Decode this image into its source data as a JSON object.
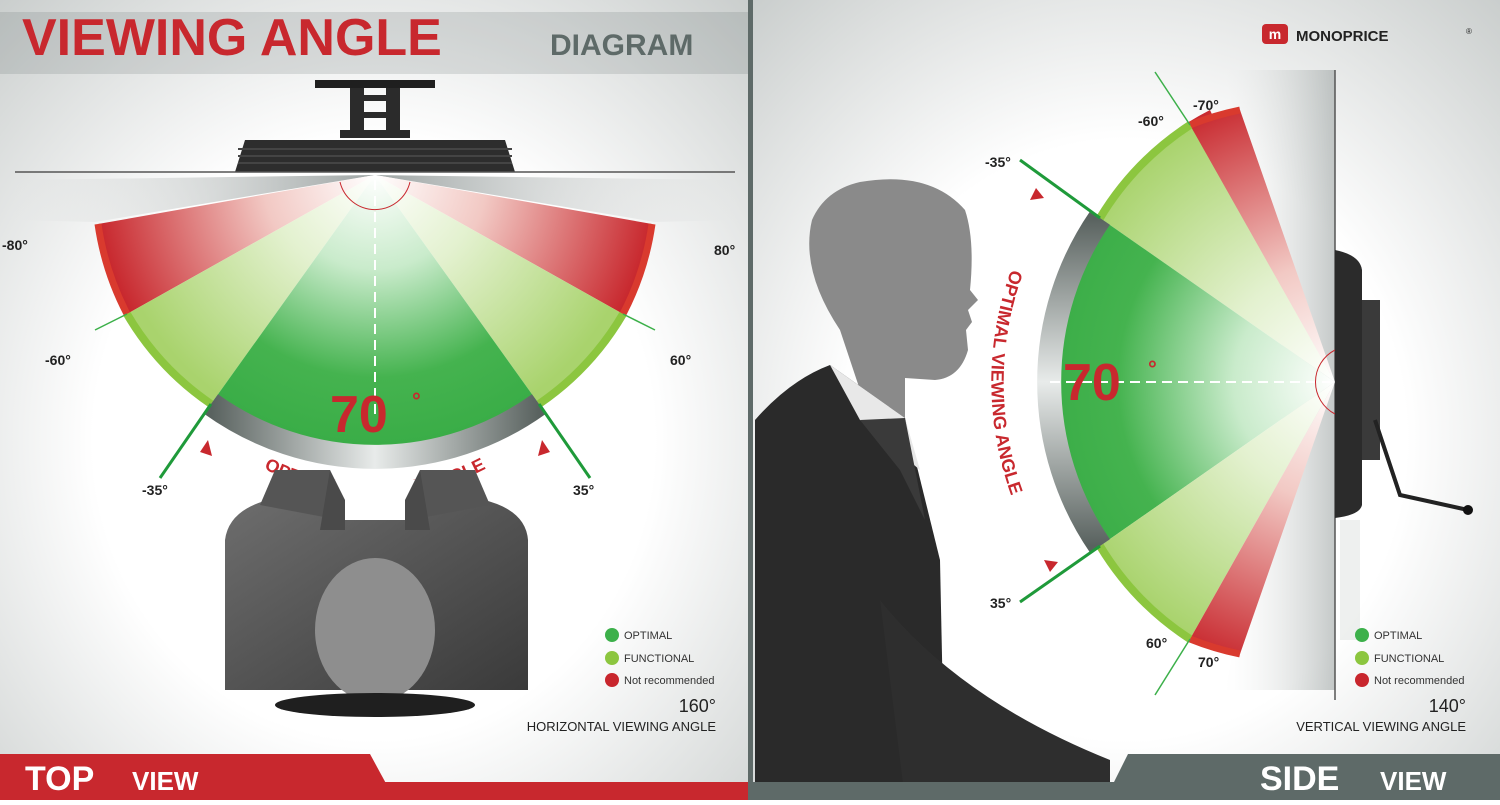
{
  "title": {
    "main": "VIEWING ANGLE",
    "sub": "DIAGRAM"
  },
  "brand": {
    "name": "MONOPRICE",
    "reg": "®",
    "logo_letter": "m"
  },
  "top_view": {
    "labels": {
      "neg80": "-80°",
      "pos80": "80°",
      "neg60": "-60°",
      "pos60": "60°",
      "neg35": "-35°",
      "pos35": "35°"
    },
    "center_value": "70",
    "center_unit": "°",
    "arc_text": "OPTIMAL VIEWING ANGLE",
    "total_value": "160°",
    "total_caption": "HORIZONTAL VIEWING ANGLE",
    "footer_bold": "TOP",
    "footer_light": "VIEW"
  },
  "side_view": {
    "labels": {
      "neg70": "-70°",
      "neg60": "-60°",
      "neg35": "-35°",
      "pos35": "35°",
      "pos60": "60°",
      "pos70": "70°"
    },
    "center_value": "70",
    "center_unit": "°",
    "arc_text": "OPTIMAL VIEWING ANGLE",
    "total_value": "140°",
    "total_caption": "VERTICAL VIEWING ANGLE",
    "footer_bold": "SIDE",
    "footer_light": "VIEW"
  },
  "legend": [
    {
      "label": "OPTIMAL",
      "color": "#3cb04a"
    },
    {
      "label": "FUNCTIONAL",
      "color": "#8cc63f"
    },
    {
      "label": "Not recommended",
      "color": "#c8262d"
    }
  ],
  "colors": {
    "red": "#c8282e",
    "dark_gray": "#5a6664",
    "optimal": "#3cb04a",
    "functional": "#8cc63f",
    "not_recommended": "#c8262d"
  }
}
